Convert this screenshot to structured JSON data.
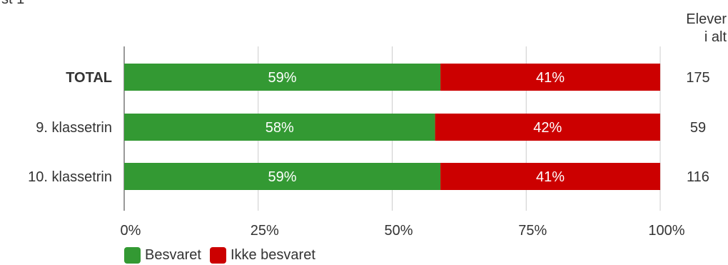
{
  "page_title": "st 1",
  "chart_data": {
    "type": "bar",
    "orientation": "horizontal",
    "stacked": true,
    "categories": [
      "TOTAL",
      "9. klassetrin",
      "10. klassetrin"
    ],
    "series": [
      {
        "name": "Besvaret",
        "color": "#339933",
        "values": [
          59,
          58,
          59
        ],
        "labels": [
          "59%",
          "58%",
          "59%"
        ]
      },
      {
        "name": "Ikke besvaret",
        "color": "#cc0000",
        "values": [
          41,
          42,
          41
        ],
        "labels": [
          "41%",
          "42%",
          "41%"
        ]
      }
    ],
    "x_ticks": [
      "0%",
      "25%",
      "50%",
      "75%",
      "100%"
    ],
    "xlim": [
      0,
      100
    ],
    "grid": true,
    "legend_position": "bottom-left",
    "right_column": {
      "title_lines": [
        "Elever",
        "i alt"
      ],
      "values": [
        "175",
        "59",
        "116"
      ]
    }
  }
}
